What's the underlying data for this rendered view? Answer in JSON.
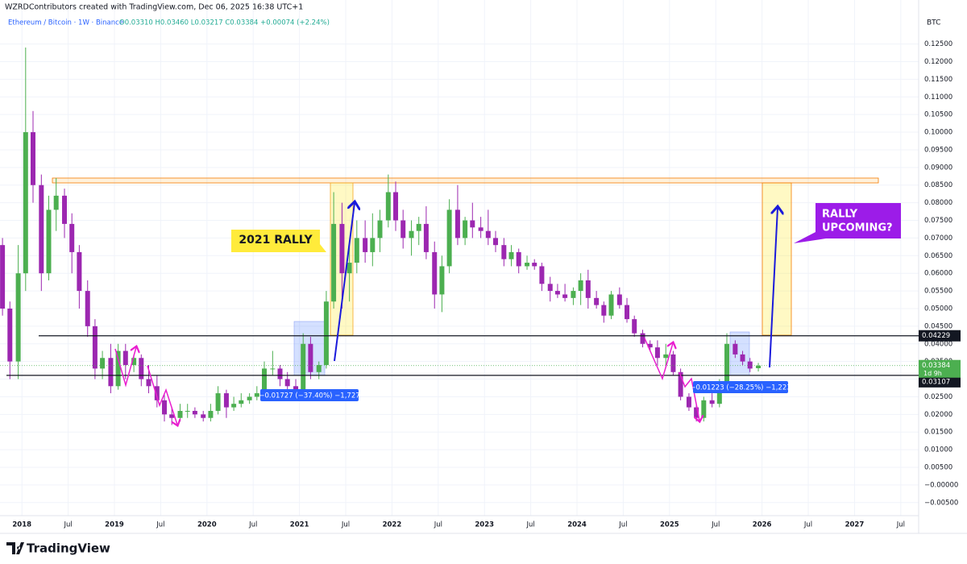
{
  "header": {
    "attribution": "WZRDContributors created with TradingView.com, Dec 06, 2025 16:38 UTC+1",
    "symbol": "Ethereum / Bitcoin · 1W · Binance",
    "ohlc": "O0.03310 H0.03460 L0.03217 C0.03384 +0.00074 (+2.24%)"
  },
  "chart_data": {
    "type": "candlestick",
    "currency": "BTC",
    "up_color": "#4caf50",
    "down_color": "#9c27b0",
    "grid": true,
    "x": [
      2017.79,
      2017.87,
      2017.96,
      2018.04,
      2018.12,
      2018.21,
      2018.29,
      2018.37,
      2018.46,
      2018.54,
      2018.62,
      2018.71,
      2018.79,
      2018.87,
      2018.96,
      2019.04,
      2019.12,
      2019.21,
      2019.29,
      2019.37,
      2019.46,
      2019.54,
      2019.62,
      2019.71,
      2019.79,
      2019.87,
      2019.96,
      2020.04,
      2020.12,
      2020.21,
      2020.29,
      2020.37,
      2020.46,
      2020.54,
      2020.62,
      2020.71,
      2020.79,
      2020.87,
      2020.96,
      2021.04,
      2021.12,
      2021.21,
      2021.29,
      2021.37,
      2021.46,
      2021.54,
      2021.62,
      2021.71,
      2021.79,
      2021.87,
      2021.96,
      2022.04,
      2022.12,
      2022.21,
      2022.29,
      2022.37,
      2022.46,
      2022.54,
      2022.62,
      2022.71,
      2022.79,
      2022.87,
      2022.96,
      2023.04,
      2023.12,
      2023.21,
      2023.29,
      2023.37,
      2023.46,
      2023.54,
      2023.62,
      2023.71,
      2023.79,
      2023.87,
      2023.96,
      2024.04,
      2024.12,
      2024.21,
      2024.29,
      2024.37,
      2024.46,
      2024.54,
      2024.62,
      2024.71,
      2024.79,
      2024.87,
      2024.96,
      2025.04,
      2025.12,
      2025.21,
      2025.29,
      2025.37,
      2025.46,
      2025.54,
      2025.62,
      2025.71,
      2025.79,
      2025.87,
      2025.96
    ],
    "open": [
      0.068,
      0.05,
      0.035,
      0.06,
      0.1,
      0.085,
      0.06,
      0.078,
      0.082,
      0.074,
      0.066,
      0.055,
      0.045,
      0.033,
      0.036,
      0.028,
      0.038,
      0.034,
      0.036,
      0.03,
      0.028,
      0.024,
      0.02,
      0.019,
      0.021,
      0.021,
      0.02,
      0.019,
      0.021,
      0.026,
      0.022,
      0.023,
      0.024,
      0.025,
      0.026,
      0.033,
      0.033,
      0.03,
      0.028,
      0.027,
      0.04,
      0.032,
      0.034,
      0.052,
      0.074,
      0.06,
      0.063,
      0.07,
      0.066,
      0.07,
      0.075,
      0.083,
      0.075,
      0.07,
      0.072,
      0.074,
      0.066,
      0.054,
      0.062,
      0.078,
      0.07,
      0.075,
      0.073,
      0.072,
      0.07,
      0.068,
      0.064,
      0.066,
      0.062,
      0.063,
      0.062,
      0.057,
      0.055,
      0.054,
      0.053,
      0.055,
      0.058,
      0.053,
      0.051,
      0.048,
      0.054,
      0.051,
      0.047,
      0.043,
      0.04,
      0.039,
      0.036,
      0.037,
      0.032,
      0.025,
      0.022,
      0.019,
      0.024,
      0.023,
      0.029,
      0.04,
      0.037,
      0.035,
      0.0331
    ],
    "high": [
      0.07,
      0.052,
      0.068,
      0.124,
      0.106,
      0.088,
      0.082,
      0.087,
      0.084,
      0.077,
      0.068,
      0.058,
      0.047,
      0.038,
      0.04,
      0.04,
      0.04,
      0.037,
      0.037,
      0.034,
      0.031,
      0.026,
      0.022,
      0.023,
      0.023,
      0.022,
      0.021,
      0.023,
      0.028,
      0.027,
      0.025,
      0.026,
      0.026,
      0.028,
      0.035,
      0.038,
      0.034,
      0.032,
      0.03,
      0.043,
      0.042,
      0.035,
      0.055,
      0.083,
      0.08,
      0.068,
      0.075,
      0.075,
      0.077,
      0.078,
      0.088,
      0.086,
      0.078,
      0.075,
      0.076,
      0.079,
      0.069,
      0.065,
      0.081,
      0.085,
      0.076,
      0.08,
      0.076,
      0.078,
      0.072,
      0.07,
      0.068,
      0.067,
      0.065,
      0.064,
      0.063,
      0.059,
      0.057,
      0.057,
      0.056,
      0.06,
      0.061,
      0.055,
      0.052,
      0.055,
      0.056,
      0.053,
      0.048,
      0.044,
      0.041,
      0.041,
      0.04,
      0.038,
      0.033,
      0.026,
      0.023,
      0.025,
      0.026,
      0.03,
      0.043,
      0.041,
      0.038,
      0.036,
      0.0346
    ],
    "low": [
      0.048,
      0.03,
      0.03,
      0.055,
      0.08,
      0.055,
      0.058,
      0.072,
      0.07,
      0.06,
      0.05,
      0.042,
      0.03,
      0.03,
      0.026,
      0.027,
      0.03,
      0.032,
      0.028,
      0.026,
      0.022,
      0.018,
      0.017,
      0.018,
      0.019,
      0.019,
      0.018,
      0.018,
      0.02,
      0.019,
      0.021,
      0.022,
      0.023,
      0.024,
      0.025,
      0.031,
      0.028,
      0.027,
      0.025,
      0.025,
      0.03,
      0.03,
      0.033,
      0.05,
      0.05,
      0.052,
      0.06,
      0.063,
      0.062,
      0.066,
      0.073,
      0.072,
      0.067,
      0.065,
      0.068,
      0.064,
      0.05,
      0.049,
      0.06,
      0.068,
      0.068,
      0.07,
      0.07,
      0.068,
      0.066,
      0.062,
      0.062,
      0.06,
      0.061,
      0.061,
      0.055,
      0.052,
      0.053,
      0.052,
      0.051,
      0.051,
      0.05,
      0.05,
      0.046,
      0.047,
      0.05,
      0.046,
      0.042,
      0.039,
      0.038,
      0.034,
      0.034,
      0.031,
      0.024,
      0.021,
      0.018,
      0.018,
      0.022,
      0.022,
      0.028,
      0.036,
      0.034,
      0.032,
      0.03217
    ],
    "close": [
      0.05,
      0.035,
      0.06,
      0.1,
      0.085,
      0.06,
      0.078,
      0.082,
      0.074,
      0.066,
      0.055,
      0.045,
      0.033,
      0.036,
      0.028,
      0.038,
      0.034,
      0.036,
      0.03,
      0.028,
      0.024,
      0.02,
      0.019,
      0.021,
      0.021,
      0.02,
      0.019,
      0.021,
      0.026,
      0.022,
      0.023,
      0.024,
      0.025,
      0.026,
      0.033,
      0.033,
      0.03,
      0.028,
      0.027,
      0.04,
      0.032,
      0.034,
      0.052,
      0.074,
      0.06,
      0.063,
      0.07,
      0.066,
      0.07,
      0.075,
      0.083,
      0.075,
      0.07,
      0.072,
      0.074,
      0.066,
      0.054,
      0.062,
      0.078,
      0.07,
      0.075,
      0.073,
      0.072,
      0.07,
      0.068,
      0.064,
      0.066,
      0.062,
      0.063,
      0.062,
      0.057,
      0.055,
      0.054,
      0.053,
      0.055,
      0.058,
      0.053,
      0.051,
      0.048,
      0.054,
      0.051,
      0.047,
      0.043,
      0.04,
      0.039,
      0.036,
      0.037,
      0.032,
      0.025,
      0.022,
      0.019,
      0.024,
      0.023,
      0.029,
      0.04,
      0.037,
      0.035,
      0.033,
      0.03384
    ],
    "xlim": [
      2017.763,
      2027.693
    ],
    "xticks": [
      2018,
      {
        "value": 2018.5,
        "label": "Jul"
      },
      2019,
      {
        "value": 2019.5,
        "label": "Jul"
      },
      2020,
      {
        "value": 2020.5,
        "label": "Jul"
      },
      2021,
      {
        "value": 2021.5,
        "label": "Jul"
      },
      2022,
      {
        "value": 2022.5,
        "label": "Jul"
      },
      2023,
      {
        "value": 2023.5,
        "label": "Jul"
      },
      2024,
      {
        "value": 2024.5,
        "label": "Jul"
      },
      2025,
      {
        "value": 2025.5,
        "label": "Jul"
      },
      2026,
      {
        "value": 2026.5,
        "label": "Jul"
      },
      2027,
      {
        "value": 2027.5,
        "label": "Jul"
      }
    ],
    "ylim": [
      -0.0087,
      0.1329
    ],
    "yticks": [
      {
        "value": 0.125,
        "label": "0.12500"
      },
      {
        "value": 0.12,
        "label": "0.12000"
      },
      {
        "value": 0.115,
        "label": "0.11500"
      },
      {
        "value": 0.11,
        "label": "0.11000"
      },
      {
        "value": 0.105,
        "label": "0.10500"
      },
      {
        "value": 0.1,
        "label": "0.10000"
      },
      {
        "value": 0.095,
        "label": "0.09500"
      },
      {
        "value": 0.09,
        "label": "0.09000"
      },
      {
        "value": 0.085,
        "label": "0.08500"
      },
      {
        "value": 0.08,
        "label": "0.08000"
      },
      {
        "value": 0.075,
        "label": "0.07500"
      },
      {
        "value": 0.07,
        "label": "0.07000"
      },
      {
        "value": 0.065,
        "label": "0.06500"
      },
      {
        "value": 0.06,
        "label": "0.06000"
      },
      {
        "value": 0.055,
        "label": "0.05500"
      },
      {
        "value": 0.05,
        "label": "0.05000"
      },
      {
        "value": 0.045,
        "label": "0.04500"
      },
      {
        "value": 0.04,
        "label": "0.04000"
      },
      {
        "value": 0.035,
        "label": "0.03500"
      },
      {
        "value": 0.03,
        "label": "0.03000"
      },
      {
        "value": 0.025,
        "label": "0.02500"
      },
      {
        "value": 0.02,
        "label": "0.02000"
      },
      {
        "value": 0.015,
        "label": "0.01500"
      },
      {
        "value": 0.01,
        "label": "0.01000"
      },
      {
        "value": 0.005,
        "label": "0.00500"
      },
      {
        "value": 0,
        "label": "−0.00000"
      },
      {
        "value": -0.005,
        "label": "−0.00500"
      }
    ],
    "levels": [
      0.04229,
      0.03107
    ],
    "last_price": 0.03384,
    "countdown": "1d 9h",
    "annotations": {
      "rally_2021": "2021 RALLY",
      "rally_upcoming": [
        "RALLY",
        "UPCOMING?"
      ],
      "measure_1": "−0.01727 (−37.40%) −1,727",
      "measure_2": "−0.01223 (−28.25%) −1,223"
    }
  },
  "footer": {
    "brand": "TradingView"
  }
}
